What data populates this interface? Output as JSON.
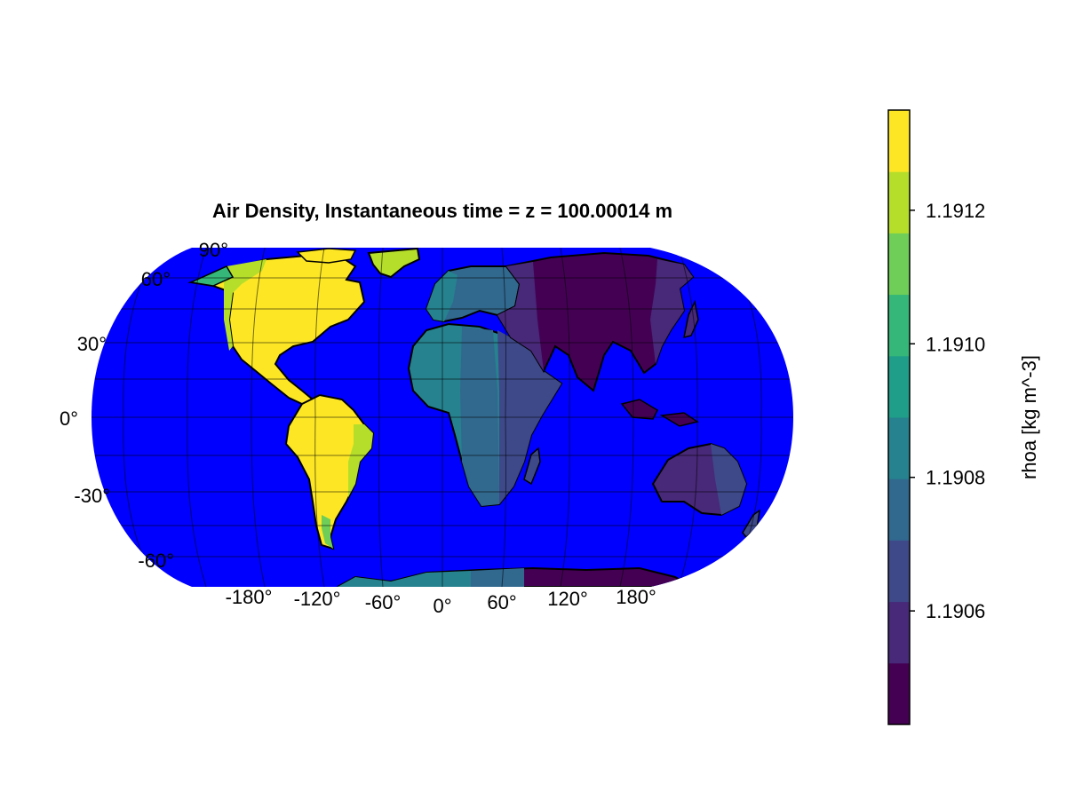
{
  "title": "Air Density, Instantaneous time =  z = 100.00014 m",
  "colorbar": {
    "label": "rhoa [kg m^-3]",
    "ticks": [
      "1.1906",
      "1.1908",
      "1.1910",
      "1.1912"
    ],
    "tick_values": [
      1.1906,
      1.1908,
      1.191,
      1.1912
    ],
    "range": [
      1.19043,
      1.19135
    ],
    "bins": 10,
    "colors": [
      "#440154",
      "#482878",
      "#3e4989",
      "#31688e",
      "#26828e",
      "#1f9e89",
      "#35b779",
      "#6ece58",
      "#b5de2b",
      "#fde725"
    ]
  },
  "map": {
    "projection": "Robinson-like, centered 0°",
    "ocean_color": "#0000ff",
    "coast_color": "#000000",
    "grid_color": "#000000",
    "lat_labels": [
      "90°",
      "60°",
      "30°",
      "0°",
      "-30°",
      "-60°"
    ],
    "lon_labels": [
      "-180°",
      "-120°",
      "-60°",
      "0°",
      "60°",
      "120°",
      "180°"
    ]
  },
  "chart_data": {
    "type": "heatmap",
    "title": "Air Density, Instantaneous time =  z = 100.00014 m",
    "variable": "rhoa",
    "units": "kg m^-3",
    "colorbar_range": [
      1.19043,
      1.19135
    ],
    "colorbar_ticks": [
      1.1906,
      1.1908,
      1.191,
      1.1912
    ],
    "levels": 10,
    "pattern": "values decrease from west to east; maximum over the Americas, minimum over Asia",
    "by_longitude": {
      "lon": [
        -120,
        -90,
        -60,
        -30,
        0,
        30,
        60,
        90,
        120,
        150
      ],
      "value": [
        1.1913,
        1.19128,
        1.19118,
        1.19105,
        1.19098,
        1.19085,
        1.19065,
        1.19047,
        1.1905,
        1.1906
      ]
    }
  }
}
